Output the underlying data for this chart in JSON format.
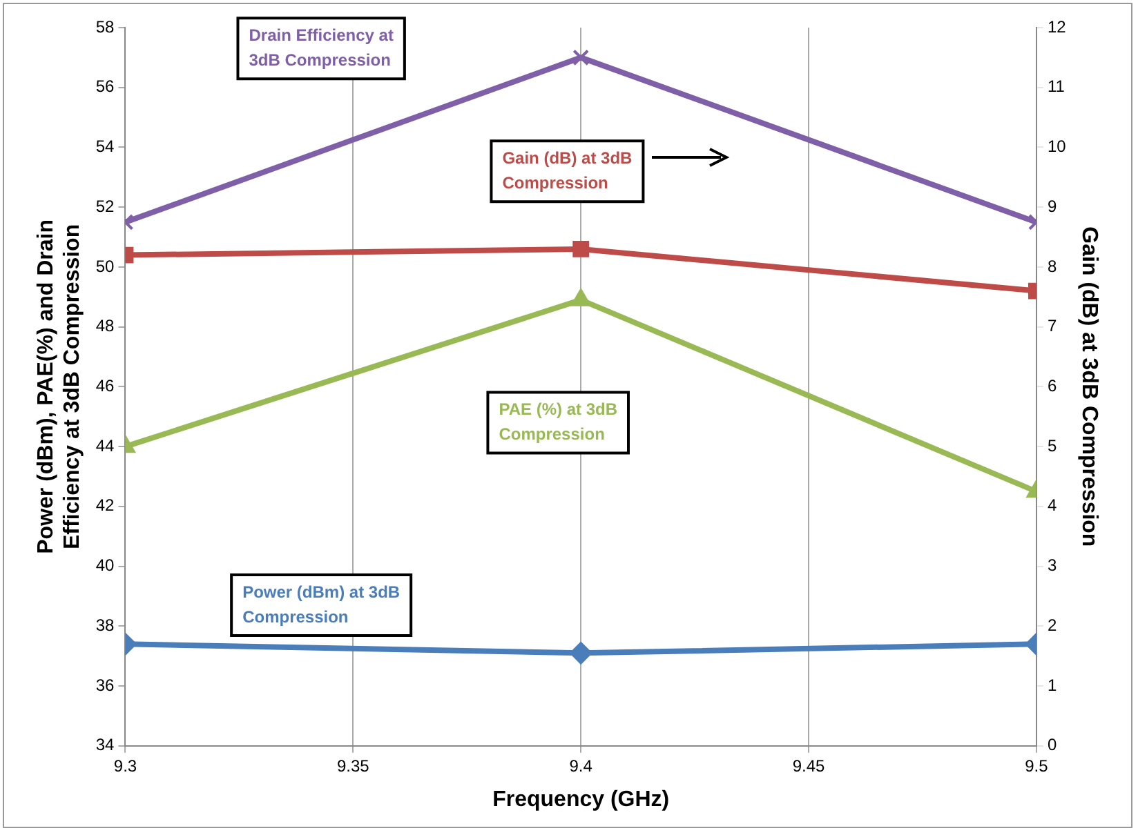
{
  "chart_data": {
    "type": "line",
    "xlabel": "Frequency (GHz)",
    "ylabel": "Power (dBm), PAE(%) and Drain Efficiency at 3dB Compression",
    "y2label": "Gain (dB) at 3dB Compression",
    "x": [
      9.3,
      9.4,
      9.5
    ],
    "series": [
      {
        "name": "Power (dBm) at 3dB Compression",
        "color": "#4a7ebb",
        "marker": "diamond",
        "values": [
          37.4,
          37.1,
          37.4
        ]
      },
      {
        "name": "Gain (dB) at 3dB Compression",
        "color": "#be4b48",
        "marker": "square",
        "axis": "y2",
        "values": [
          8.2,
          8.3,
          7.6
        ]
      },
      {
        "name": "PAE (%) at 3dB Compression",
        "color": "#98b954",
        "marker": "triangle",
        "values": [
          44.0,
          48.9,
          42.5
        ]
      },
      {
        "name": "Drain Efficiency at 3dB Compression",
        "color": "#7f5fa8",
        "marker": "cross",
        "values": [
          51.5,
          57.0,
          51.5
        ]
      }
    ],
    "xlim": [
      9.3,
      9.5
    ],
    "xticks": [
      9.3,
      9.35,
      9.4,
      9.45,
      9.5
    ],
    "ylim": [
      34,
      58
    ],
    "yticks": [
      34,
      36,
      38,
      40,
      42,
      44,
      46,
      48,
      50,
      52,
      54,
      56,
      58
    ],
    "y2lim": [
      0,
      12
    ],
    "y2ticks": [
      0,
      1,
      2,
      3,
      4,
      5,
      6,
      7,
      8,
      9,
      10,
      11,
      12
    ],
    "grid": "x",
    "legend": false,
    "line_style": "solid"
  }
}
